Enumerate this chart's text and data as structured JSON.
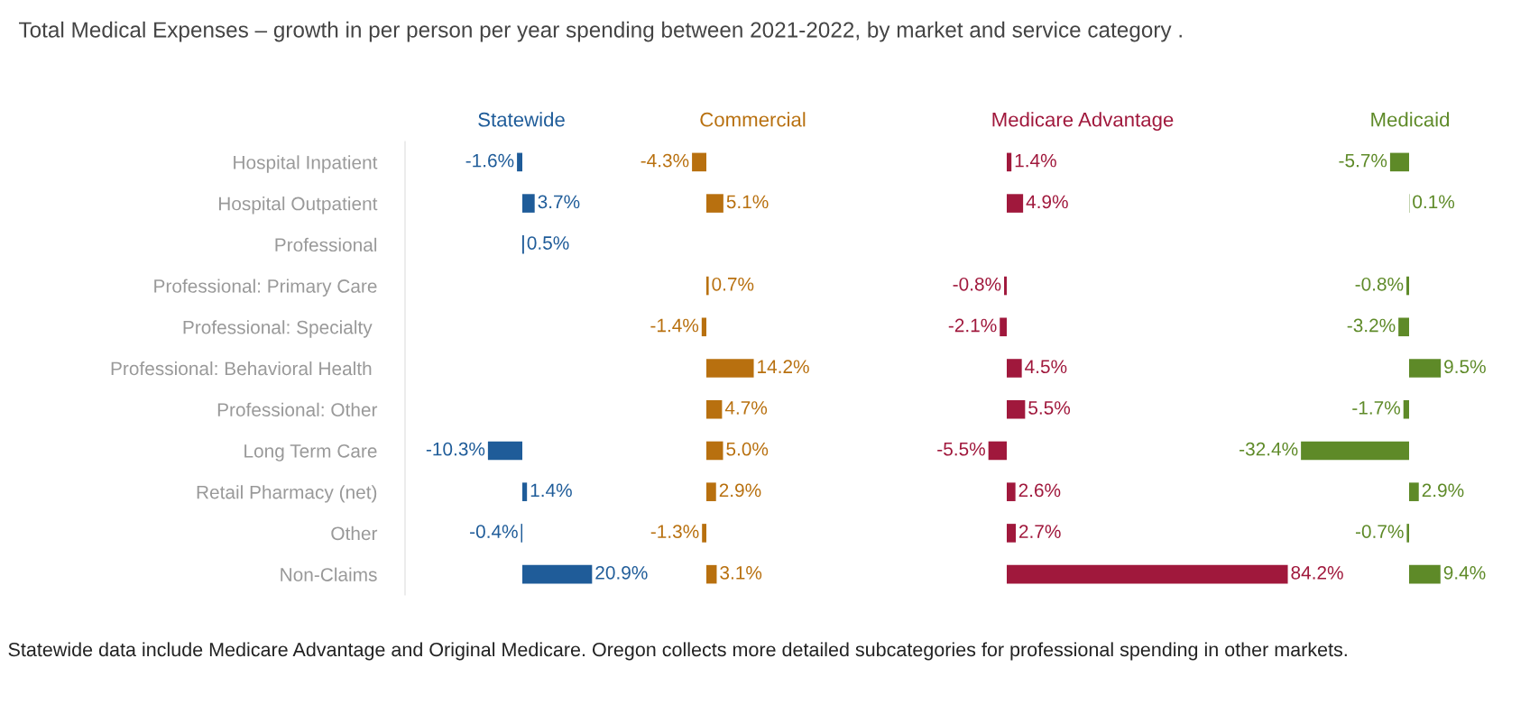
{
  "chart_data": [
    {
      "type": "bar",
      "orientation": "horizontal",
      "title": "Statewide",
      "color": "#1f5c99",
      "tick_labels": "y",
      "annotations": [
        "Total Medical Expenses – growth in per person per year spending between 2021-2022, by market and service category .",
        "Statewide data include Medicare Advantage and Original Medicare. Oregon collects more detailed subcategories for professional spending in other markets."
      ],
      "categories": [
        "Hospital Inpatient",
        "Hospital Outpatient",
        "Professional",
        "Professional: Primary Care",
        "Professional: Specialty ",
        "Professional: Behavioral Health ",
        "Professional: Other",
        "Long Term Care",
        "Retail Pharmacy (net)",
        "Other",
        "Non-Claims"
      ],
      "values": [
        -1.6,
        3.7,
        0.5,
        null,
        null,
        null,
        null,
        -10.3,
        1.4,
        -0.4,
        20.9
      ],
      "value_labels": [
        "-1.6%",
        "3.7%",
        "0.5%",
        null,
        null,
        null,
        null,
        "-10.3%",
        "1.4%",
        "-0.4%",
        "20.9%"
      ]
    },
    {
      "type": "bar",
      "orientation": "horizontal",
      "title": "Commercial",
      "color": "#b8700f",
      "tick_labels": false,
      "values": [
        -4.3,
        5.1,
        null,
        0.7,
        -1.4,
        14.2,
        4.7,
        5.0,
        2.9,
        -1.3,
        3.1
      ],
      "value_labels": [
        "-4.3%",
        "5.1%",
        null,
        "0.7%",
        "-1.4%",
        "14.2%",
        "4.7%",
        "5.0%",
        "2.9%",
        "-1.3%",
        "3.1%"
      ]
    },
    {
      "type": "bar",
      "orientation": "horizontal",
      "title": "Medicare Advantage",
      "color": "#a0183c",
      "tick_labels": false,
      "values": [
        1.4,
        4.9,
        null,
        -0.8,
        -2.1,
        4.5,
        5.5,
        -5.5,
        2.6,
        2.7,
        84.2
      ],
      "value_labels": [
        "1.4%",
        "4.9%",
        null,
        "-0.8%",
        "-2.1%",
        "4.5%",
        "5.5%",
        "-5.5%",
        "2.6%",
        "2.7%",
        "84.2%"
      ]
    },
    {
      "type": "bar",
      "orientation": "horizontal",
      "title": "Medicaid",
      "color": "#5e8a28",
      "tick_labels": false,
      "values": [
        -5.7,
        0.1,
        null,
        -0.8,
        -3.2,
        9.5,
        -1.7,
        -32.4,
        2.9,
        -0.7,
        9.4
      ],
      "value_labels": [
        "-5.7%",
        "0.1%",
        null,
        "-0.8%",
        "-3.2%",
        "9.5%",
        "-1.7%",
        "-32.4%",
        "2.9%",
        "-0.7%",
        "9.4%"
      ]
    }
  ]
}
